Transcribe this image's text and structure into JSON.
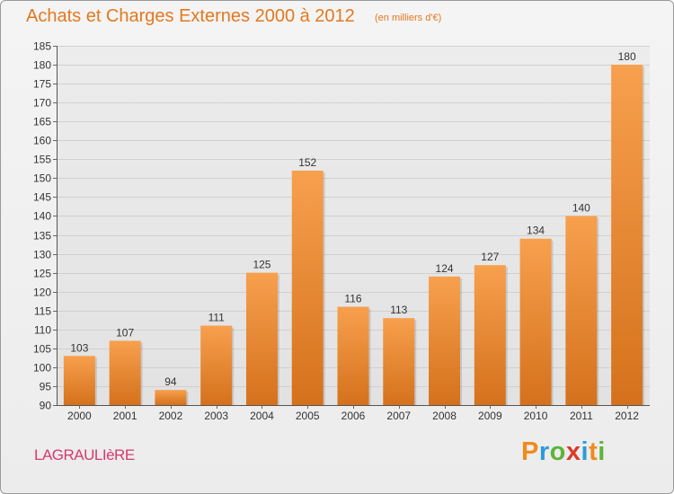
{
  "header": {
    "title": "Achats et Charges Externes 2000 à 2012",
    "subtitle": "(en milliers d'€)"
  },
  "footer": {
    "commune": "LAGRAULIèRE",
    "brand_letters": [
      "P",
      "r",
      "o",
      "x",
      "i",
      "t",
      "i"
    ],
    "brand_colors": [
      "#f08a1c",
      "#2b9bd6",
      "#5db536",
      "#d93a2b",
      "#2b9bd6",
      "#f08a1c",
      "#5db536"
    ]
  },
  "chart_data": {
    "type": "bar",
    "title": "Achats et Charges Externes 2000 à 2012",
    "subtitle": "(en milliers d'€)",
    "categories": [
      "2000",
      "2001",
      "2002",
      "2003",
      "2004",
      "2005",
      "2006",
      "2007",
      "2008",
      "2009",
      "2010",
      "2011",
      "2012"
    ],
    "values": [
      103,
      107,
      94,
      111,
      125,
      152,
      116,
      113,
      124,
      127,
      134,
      140,
      180
    ],
    "ylim": [
      90,
      185
    ],
    "yticks": [
      90,
      95,
      100,
      105,
      110,
      115,
      120,
      125,
      130,
      135,
      140,
      145,
      150,
      155,
      160,
      165,
      170,
      175,
      180,
      185
    ],
    "grid": true,
    "bar_color_top": "#f7a04e",
    "bar_color_bottom": "#d5711c"
  }
}
